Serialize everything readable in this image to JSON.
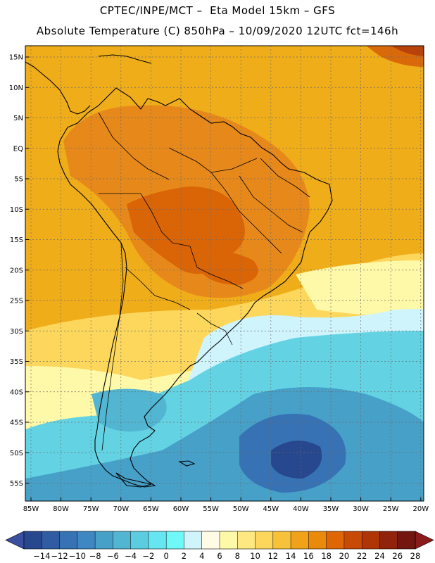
{
  "header": {
    "line1": "CPTEC/INPE/MCT –  Eta Model 15km – GFS",
    "line2": "Absolute Temperature (C) 850hPa – 10/09/2020 12UTC fct=146h"
  },
  "map": {
    "lat_labels": [
      "15N",
      "10N",
      "5N",
      "EQ",
      "5S",
      "10S",
      "15S",
      "20S",
      "25S",
      "30S",
      "35S",
      "40S",
      "45S",
      "50S",
      "55S"
    ],
    "lon_labels": [
      "85W",
      "80W",
      "75W",
      "70W",
      "65W",
      "60W",
      "55W",
      "50W",
      "45W",
      "40W",
      "35W",
      "30W",
      "25W",
      "20W"
    ]
  },
  "colorbar": {
    "tick_labels": [
      "-14",
      "-12",
      "-10",
      "-8",
      "-6",
      "-4",
      "-2",
      "0",
      "2",
      "4",
      "6",
      "8",
      "10",
      "12",
      "14",
      "16",
      "18",
      "20",
      "22",
      "24",
      "26",
      "28"
    ],
    "under_color": "#3b4fa0",
    "over_color": "#8b1a1a",
    "colors": [
      "#27478f",
      "#2f5ca3",
      "#3772b4",
      "#3e87c2",
      "#46a0c8",
      "#52b6d2",
      "#5ccde0",
      "#66e6f0",
      "#6ff8f8",
      "#cff4fb",
      "#fffbe5",
      "#fef9a8",
      "#fde980",
      "#fcd75c",
      "#f7c13a",
      "#f0a31a",
      "#e98a0c",
      "#de6604",
      "#c84b05",
      "#b03506",
      "#902309",
      "#73160f"
    ]
  },
  "fields": {
    "ocean_color": "#f0ad1a",
    "warm_land_color": "#e7891a",
    "hot_core_color": "#da6507",
    "cool_sea_color": "#63d3e4",
    "cold_core_color": "#2c5ba2"
  }
}
